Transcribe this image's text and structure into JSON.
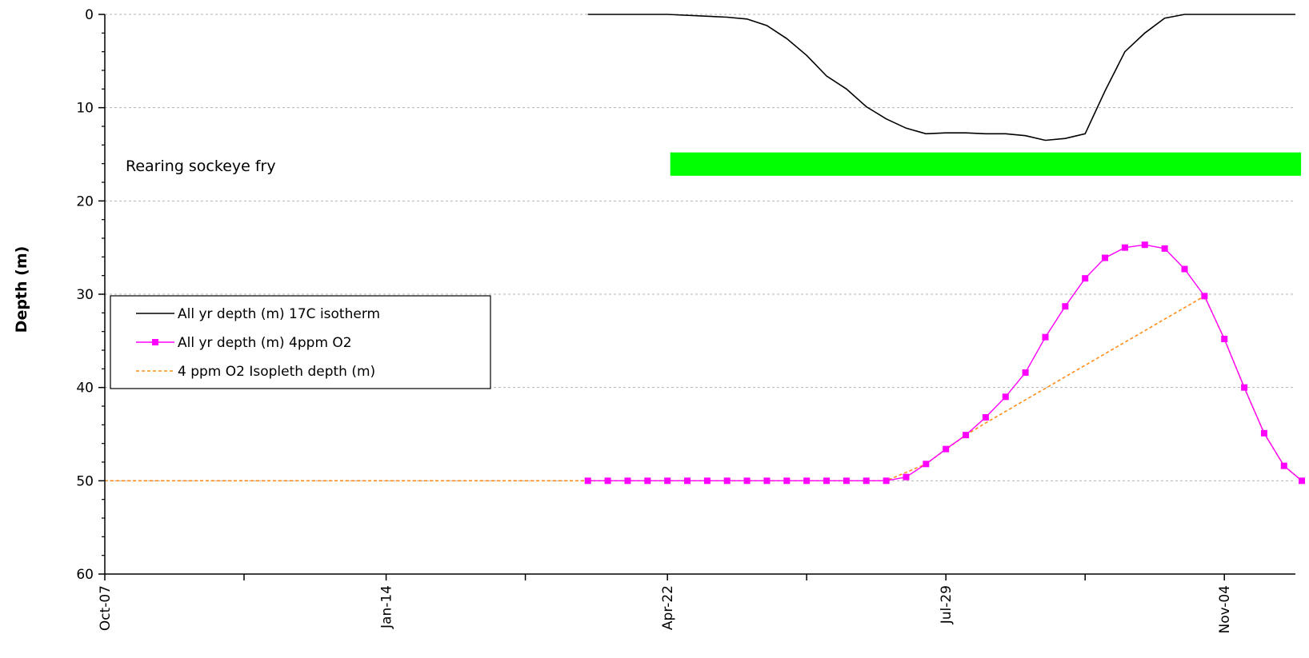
{
  "chart_data": {
    "type": "line",
    "title": "",
    "xlabel": "",
    "ylabel": "Depth (m)",
    "y_reversed": true,
    "ylim": [
      0,
      60
    ],
    "y_ticks": [
      0,
      10,
      20,
      30,
      40,
      50,
      60
    ],
    "xlim": [
      "2011-10-07",
      "2012-11-29"
    ],
    "x_tick_labels": [
      {
        "date": "2011-10-07",
        "label": "Oct-07"
      },
      {
        "date": "2012-01-14",
        "label": "Jan-14"
      },
      {
        "date": "2012-04-22",
        "label": "Apr-22"
      },
      {
        "date": "2012-07-29",
        "label": "Jul-29"
      },
      {
        "date": "2012-11-04",
        "label": "Nov-04"
      }
    ],
    "x_minor_ticks": [
      "2011-11-25",
      "2012-03-03",
      "2012-06-10",
      "2012-09-16"
    ],
    "grid": "horizontal dashed",
    "legend_position": "left-middle",
    "series": [
      {
        "name": "All yr depth (m) 17C isotherm",
        "color": "#000000",
        "style": "solid",
        "marker": "none",
        "x": [
          "2012-03-25",
          "2012-04-22",
          "2012-05-06",
          "2012-05-13",
          "2012-05-20",
          "2012-05-27",
          "2012-06-03",
          "2012-06-10",
          "2012-06-17",
          "2012-06-24",
          "2012-07-01",
          "2012-07-08",
          "2012-07-15",
          "2012-07-22",
          "2012-07-29",
          "2012-08-05",
          "2012-08-12",
          "2012-08-19",
          "2012-08-26",
          "2012-09-02",
          "2012-09-09",
          "2012-09-16",
          "2012-09-23",
          "2012-09-30",
          "2012-10-07",
          "2012-10-14",
          "2012-10-21",
          "2012-10-28",
          "2012-11-04",
          "2012-11-18",
          "2012-11-29"
        ],
        "values": [
          0,
          0,
          0.2,
          0.3,
          0.5,
          1.2,
          2.6,
          4.4,
          6.6,
          8,
          9.9,
          11.2,
          12.2,
          12.8,
          12.7,
          12.7,
          12.8,
          12.8,
          13,
          13.5,
          13.3,
          12.8,
          8.2,
          4,
          2,
          0.4,
          0,
          0,
          0,
          0,
          0
        ]
      },
      {
        "name": "All yr depth (m) 4ppm O2",
        "color": "#ff00ff",
        "style": "solid",
        "marker": "square",
        "x": [
          "2012-03-25",
          "2012-04-01",
          "2012-04-08",
          "2012-04-15",
          "2012-04-22",
          "2012-04-29",
          "2012-05-06",
          "2012-05-13",
          "2012-05-20",
          "2012-05-27",
          "2012-06-03",
          "2012-06-10",
          "2012-06-17",
          "2012-06-24",
          "2012-07-01",
          "2012-07-08",
          "2012-07-15",
          "2012-07-22",
          "2012-07-29",
          "2012-08-05",
          "2012-08-12",
          "2012-08-19",
          "2012-08-26",
          "2012-09-02",
          "2012-09-09",
          "2012-09-16",
          "2012-09-23",
          "2012-09-30",
          "2012-10-07",
          "2012-10-14",
          "2012-10-21",
          "2012-10-28",
          "2012-11-04",
          "2012-11-11",
          "2012-11-18",
          "2012-11-25",
          "2012-12-02"
        ],
        "values": [
          50,
          50,
          50,
          50,
          50,
          50,
          50,
          50,
          50,
          50,
          50,
          50,
          50,
          50,
          50,
          50,
          49.6,
          48.2,
          46.6,
          45.1,
          43.2,
          41,
          38.4,
          34.6,
          31.3,
          28.3,
          26.1,
          25,
          24.7,
          25.1,
          27.3,
          30.2,
          34.8,
          40,
          44.9,
          48.4,
          50
        ]
      },
      {
        "name": "4 ppm O2 Isopleth depth (m)",
        "color": "#ff8c1a",
        "style": "dashed",
        "marker": "none",
        "x": [
          "2011-10-07",
          "2012-07-08",
          "2012-07-22",
          "2012-08-05",
          "2012-08-12",
          "2012-10-28",
          "2012-11-04",
          "2012-11-11",
          "2012-11-18",
          "2012-11-25",
          "2012-12-02"
        ],
        "values": [
          50,
          50,
          48.2,
          45.1,
          43.8,
          30.2,
          34.8,
          40,
          44.9,
          48.4,
          50
        ]
      }
    ],
    "annotations": [
      {
        "text": "Rearing sockeye fry",
        "bar": {
          "x_start": "2012-04-23",
          "x_end": "2012-12-01",
          "y_top": 14.8,
          "y_bottom": 17.3,
          "color": "#00ff00"
        }
      }
    ]
  }
}
